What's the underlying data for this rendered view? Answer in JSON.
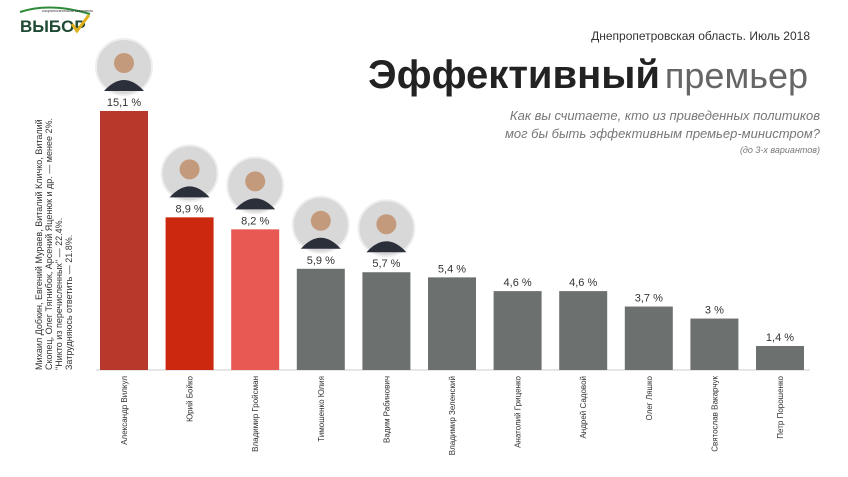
{
  "header": {
    "logo": "ВЫБОР",
    "logo_caption": "социологическая компания",
    "region": "Днепропетровская область. Июль 2018",
    "title_bold": "Эффективный",
    "title_light": "премьер",
    "question": [
      "Как вы считаете, кто из приведенных политиков",
      "мог бы быть эффективным премьер-министром?"
    ],
    "note": "(до 3-х вариантов)"
  },
  "side_note": [
    "Михаил Добкин, Евгений Мураев, Виталий Кличко, Виталий",
    "Скопец, Олег Тягнибок, Арсений Яценюк и др. — менее 2%.",
    "\"Никто из перечисленных\" — 22.4%.",
    "Затрудняюсь ответить — 21.8%."
  ],
  "chart_data": {
    "type": "bar",
    "categories": [
      "Александр Вилкул",
      "Юрий Бойко",
      "Владимир Гройсман",
      "Тимошенко Юлия",
      "Вадим Рабинович",
      "Владимир Зеленский",
      "Анатолий Гриценко",
      "Андрей Садовой",
      "Олег Ляшко",
      "Святослав Вакарчук",
      "Петр Порошенко"
    ],
    "values": [
      15.1,
      8.9,
      8.2,
      5.9,
      5.7,
      5.4,
      4.6,
      4.6,
      3.7,
      3,
      1.4
    ],
    "value_labels": [
      "15,1 %",
      "8,9 %",
      "8,2 %",
      "5,9 %",
      "5,7 %",
      "5,4 %",
      "4,6 %",
      "4,6 %",
      "3,7 %",
      "3 %",
      "1,4 %"
    ],
    "colors": [
      "#b8392c",
      "#cc2810",
      "#e85954",
      "#6c706e",
      "#6c706e",
      "#6c706e",
      "#6c706e",
      "#6c706e",
      "#6c706e",
      "#6c706e",
      "#6c706e"
    ]
  }
}
